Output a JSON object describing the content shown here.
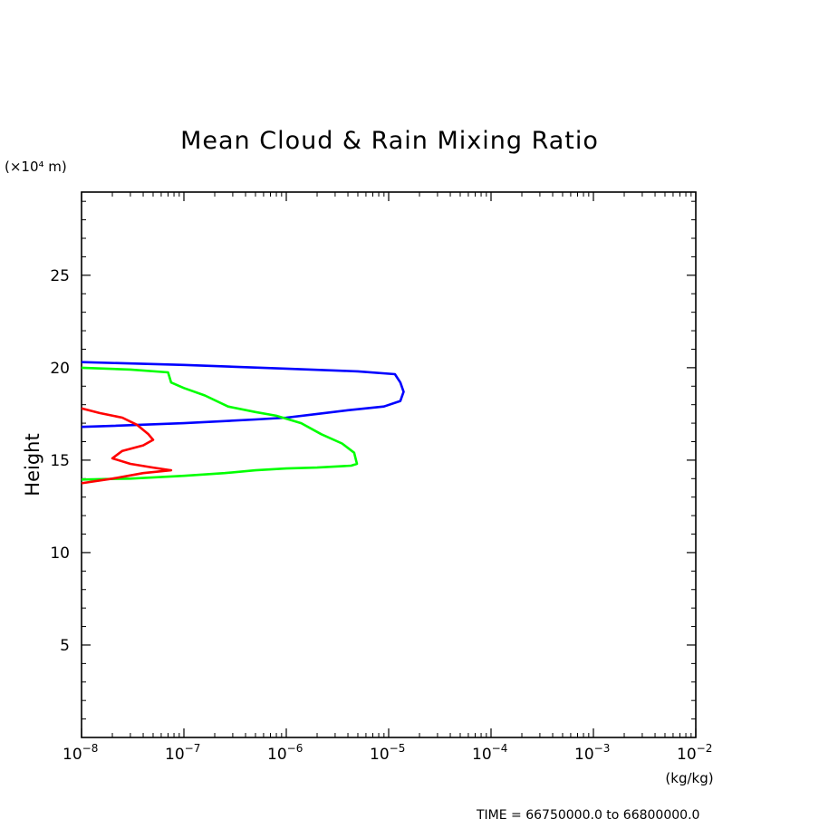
{
  "chart_data": {
    "type": "line",
    "title": "Mean Cloud & Rain Mixing Ratio",
    "ylabel": "Height",
    "y_unit_label": "(×10⁴ m)",
    "xlabel_unit": "(kg/kg)",
    "time_label": "TIME = 66750000.0 to 66800000.0",
    "x_scale": "log",
    "xlim": [
      1e-08,
      0.01
    ],
    "ylim": [
      0,
      29.5
    ],
    "x_ticks": [
      {
        "base": "10",
        "exp": "−8",
        "value": 1e-08
      },
      {
        "base": "10",
        "exp": "−7",
        "value": 1e-07
      },
      {
        "base": "10",
        "exp": "−6",
        "value": 1e-06
      },
      {
        "base": "10",
        "exp": "−5",
        "value": 1e-05
      },
      {
        "base": "10",
        "exp": "−4",
        "value": 0.0001
      },
      {
        "base": "10",
        "exp": "−3",
        "value": 0.001
      },
      {
        "base": "10",
        "exp": "−2",
        "value": 0.01
      }
    ],
    "y_ticks": [
      "5",
      "10",
      "15",
      "20",
      "25"
    ],
    "y_tick_values": [
      5,
      10,
      15,
      20,
      25
    ],
    "grid": false,
    "legend": "none",
    "series": [
      {
        "color": "#0000ff",
        "points": [
          [
            1e-08,
            20.3
          ],
          [
            1e-07,
            20.15
          ],
          [
            1e-06,
            19.95
          ],
          [
            5e-06,
            19.8
          ],
          [
            1.15e-05,
            19.65
          ],
          [
            1.3e-05,
            19.2
          ],
          [
            1.4e-05,
            18.7
          ],
          [
            1.3e-05,
            18.2
          ],
          [
            9e-06,
            17.9
          ],
          [
            4e-06,
            17.7
          ],
          [
            2e-06,
            17.5
          ],
          [
            1e-06,
            17.3
          ],
          [
            5e-07,
            17.2
          ],
          [
            1e-07,
            17.0
          ],
          [
            2e-08,
            16.85
          ],
          [
            1e-08,
            16.8
          ]
        ]
      },
      {
        "color": "#00ff00",
        "points": [
          [
            1e-08,
            20.0
          ],
          [
            3e-08,
            19.9
          ],
          [
            7e-08,
            19.75
          ],
          [
            7.5e-08,
            19.2
          ],
          [
            1e-07,
            18.9
          ],
          [
            1.6e-07,
            18.5
          ],
          [
            2.7e-07,
            17.9
          ],
          [
            5e-07,
            17.6
          ],
          [
            8e-07,
            17.4
          ],
          [
            1.4e-06,
            17.0
          ],
          [
            2.2e-06,
            16.4
          ],
          [
            3.5e-06,
            15.9
          ],
          [
            4.6e-06,
            15.4
          ],
          [
            4.9e-06,
            14.8
          ],
          [
            4.3e-06,
            14.7
          ],
          [
            2e-06,
            14.6
          ],
          [
            1e-06,
            14.55
          ],
          [
            5e-07,
            14.45
          ],
          [
            2.5e-07,
            14.3
          ],
          [
            1e-07,
            14.15
          ],
          [
            3e-08,
            14.0
          ],
          [
            1e-08,
            13.95
          ]
        ]
      },
      {
        "color": "#ff0000",
        "points": [
          [
            1e-08,
            17.8
          ],
          [
            1.5e-08,
            17.55
          ],
          [
            2.5e-08,
            17.3
          ],
          [
            3.5e-08,
            16.9
          ],
          [
            4.5e-08,
            16.4
          ],
          [
            5e-08,
            16.1
          ],
          [
            4e-08,
            15.8
          ],
          [
            2.5e-08,
            15.5
          ],
          [
            2e-08,
            15.1
          ],
          [
            3e-08,
            14.8
          ],
          [
            5e-08,
            14.6
          ],
          [
            7.5e-08,
            14.45
          ],
          [
            4e-08,
            14.3
          ],
          [
            2e-08,
            14.0
          ],
          [
            1e-08,
            13.75
          ]
        ]
      }
    ]
  }
}
